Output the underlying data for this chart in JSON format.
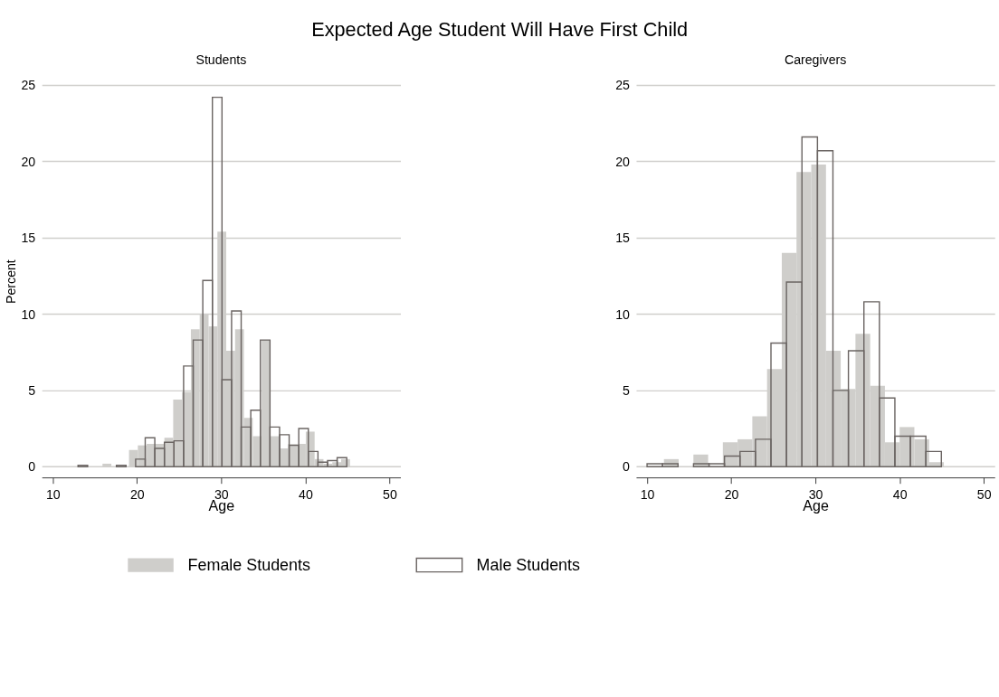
{
  "chart_data": [
    {
      "type": "bar",
      "title": "Expected Age Student Will Have First Child",
      "subtitle": "Students",
      "xlabel": "Age",
      "ylabel": "Percent",
      "xlim": [
        8.7,
        51.3
      ],
      "xticks": [
        10,
        20,
        30,
        40,
        50
      ],
      "ylim": [
        -0.7,
        25
      ],
      "yticks": [
        0,
        5,
        10,
        15,
        20,
        25
      ],
      "grid": "y",
      "legend": "bottom",
      "series": [
        {
          "name": "Female Students",
          "color": "#cfcecb",
          "x": [
            16.43,
            17.48,
            18.53,
            19.58,
            20.63,
            21.68,
            22.73,
            23.78,
            24.83,
            25.88,
            26.93,
            27.98,
            29.03,
            30.08,
            31.13,
            32.18,
            33.23,
            34.28,
            35.33,
            36.38,
            37.43,
            38.48,
            39.53,
            40.58,
            41.63,
            42.68,
            43.73,
            44.78
          ],
          "values": [
            0.2,
            null,
            null,
            1.1,
            1.4,
            1.5,
            1.5,
            1.9,
            4.4,
            4.9,
            9.0,
            10.0,
            9.2,
            15.4,
            7.6,
            9.0,
            3.2,
            2.0,
            8.3,
            2.0,
            1.2,
            1.5,
            1.5,
            2.3,
            0.5,
            0.2,
            0.3,
            0.5
          ]
        },
        {
          "name": "Male Students",
          "color": "#6b6563",
          "x": [
            13.57,
            14.71,
            15.85,
            16.99,
            18.13,
            19.27,
            20.41,
            21.55,
            22.69,
            23.83,
            24.97,
            26.11,
            27.25,
            28.39,
            29.53,
            30.67,
            31.81,
            32.95,
            34.09,
            35.23,
            36.37,
            37.51,
            38.65,
            39.79,
            40.93,
            42.07,
            43.21,
            44.35
          ],
          "values": [
            0.1,
            null,
            null,
            null,
            0.1,
            null,
            0.5,
            1.9,
            1.2,
            1.6,
            1.7,
            6.6,
            8.3,
            12.2,
            24.2,
            5.7,
            10.2,
            2.6,
            3.7,
            8.3,
            2.6,
            2.1,
            1.4,
            2.5,
            1.0,
            0.3,
            0.4,
            0.6
          ]
        }
      ]
    },
    {
      "type": "bar",
      "subtitle": "Caregivers",
      "xlabel": "Age",
      "xlim": [
        8.7,
        51.3
      ],
      "xticks": [
        10,
        20,
        30,
        40,
        50
      ],
      "ylim": [
        -0.7,
        25
      ],
      "yticks": [
        0,
        5,
        10,
        15,
        20,
        25
      ],
      "grid": "y",
      "series": [
        {
          "color": "#cfcecb",
          "x": [
            12.88,
            14.63,
            16.38,
            18.13,
            19.88,
            21.63,
            23.38,
            25.13,
            26.88,
            28.63,
            30.38,
            32.13,
            33.88,
            35.63,
            37.38,
            39.13,
            40.88,
            42.63,
            44.38
          ],
          "values": [
            0.5,
            null,
            0.8,
            null,
            1.6,
            1.8,
            3.3,
            6.4,
            14.0,
            19.3,
            19.8,
            7.6,
            5.1,
            8.7,
            5.3,
            1.6,
            2.6,
            1.8,
            0.3
          ]
        },
        {
          "color": "#6b6563",
          "x": [
            10.92,
            12.76,
            14.6,
            16.44,
            18.28,
            20.12,
            21.96,
            23.8,
            25.64,
            27.48,
            29.32,
            31.16,
            33.0,
            34.84,
            36.68,
            38.52,
            40.36,
            42.2,
            44.04
          ],
          "values": [
            0.2,
            0.2,
            null,
            0.2,
            0.2,
            0.7,
            1.0,
            1.8,
            8.1,
            12.1,
            21.6,
            20.7,
            5.0,
            7.6,
            10.8,
            4.5,
            2.0,
            2.0,
            1.0
          ]
        }
      ]
    }
  ]
}
